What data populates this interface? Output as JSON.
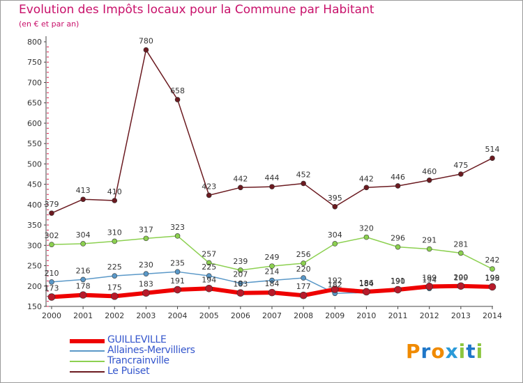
{
  "header": {
    "title": "Evolution des Impôts locaux pour la Commune par Habitant",
    "subtitle": "(en € et par an)"
  },
  "logo": {
    "text": "Proxiti"
  },
  "chart_data": {
    "type": "line",
    "title": "Evolution des Impôts locaux pour la Commune par Habitant",
    "subtitle": "(en € et par an)",
    "x": [
      "2000",
      "2001",
      "2002",
      "2003",
      "2004",
      "2005",
      "2006",
      "2007",
      "2008",
      "2009",
      "2010",
      "2011",
      "2012",
      "2013",
      "2014"
    ],
    "ylim": [
      150,
      800
    ],
    "yticks": [
      150,
      200,
      250,
      300,
      350,
      400,
      450,
      500,
      550,
      600,
      650,
      700,
      750,
      800
    ],
    "grid": false,
    "legend_position": "bottom-left",
    "series": [
      {
        "name": "GUILLEVILLE",
        "color": "#ee0000",
        "values": [
          173,
          178,
          175,
          183,
          191,
          194,
          183,
          184,
          177,
          192,
          186,
          191,
          199,
          200,
          198
        ]
      },
      {
        "name": "Allaines-Mervilliers",
        "color": "#5a98c8",
        "values": [
          210,
          216,
          225,
          230,
          235,
          225,
          207,
          214,
          220,
          182,
          184,
          190,
          194,
          199,
          199
        ]
      },
      {
        "name": "Trancrainville",
        "color": "#8cd050",
        "values": [
          302,
          304,
          310,
          317,
          323,
          257,
          239,
          249,
          256,
          304,
          320,
          296,
          291,
          281,
          242
        ]
      },
      {
        "name": "Le Puiset",
        "color": "#6b1a20",
        "values": [
          379,
          413,
          410,
          780,
          658,
          423,
          442,
          444,
          452,
          395,
          442,
          446,
          460,
          475,
          514
        ]
      }
    ]
  }
}
